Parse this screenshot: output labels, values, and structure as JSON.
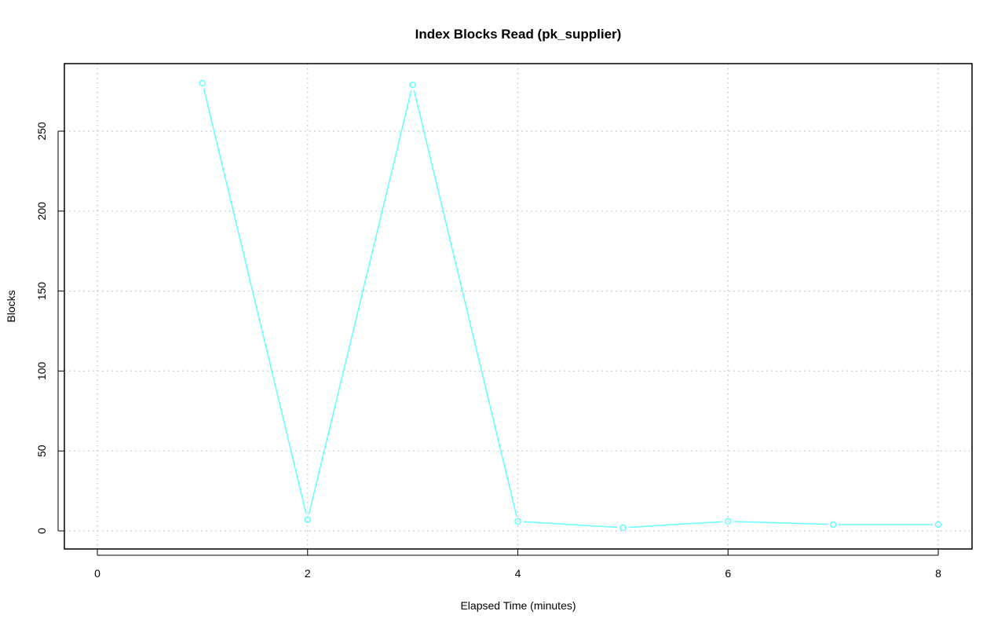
{
  "chart_data": {
    "type": "line",
    "title": "Index Blocks Read (pk_supplier)",
    "xlabel": "Elapsed Time (minutes)",
    "ylabel": "Blocks",
    "x": [
      1,
      2,
      3,
      4,
      5,
      6,
      7,
      8
    ],
    "values": [
      280,
      7,
      279,
      6,
      2,
      6,
      4,
      4
    ],
    "xlim": [
      0,
      8
    ],
    "ylim": [
      0,
      250
    ],
    "xticks": [
      "0",
      "2",
      "4",
      "6",
      "8"
    ],
    "yticks": [
      "0",
      "50",
      "100",
      "150",
      "200",
      "250"
    ],
    "grid": true,
    "markers": "open-circle",
    "series_color": "#66FFFF",
    "grid_color": "#BEBEBE"
  }
}
